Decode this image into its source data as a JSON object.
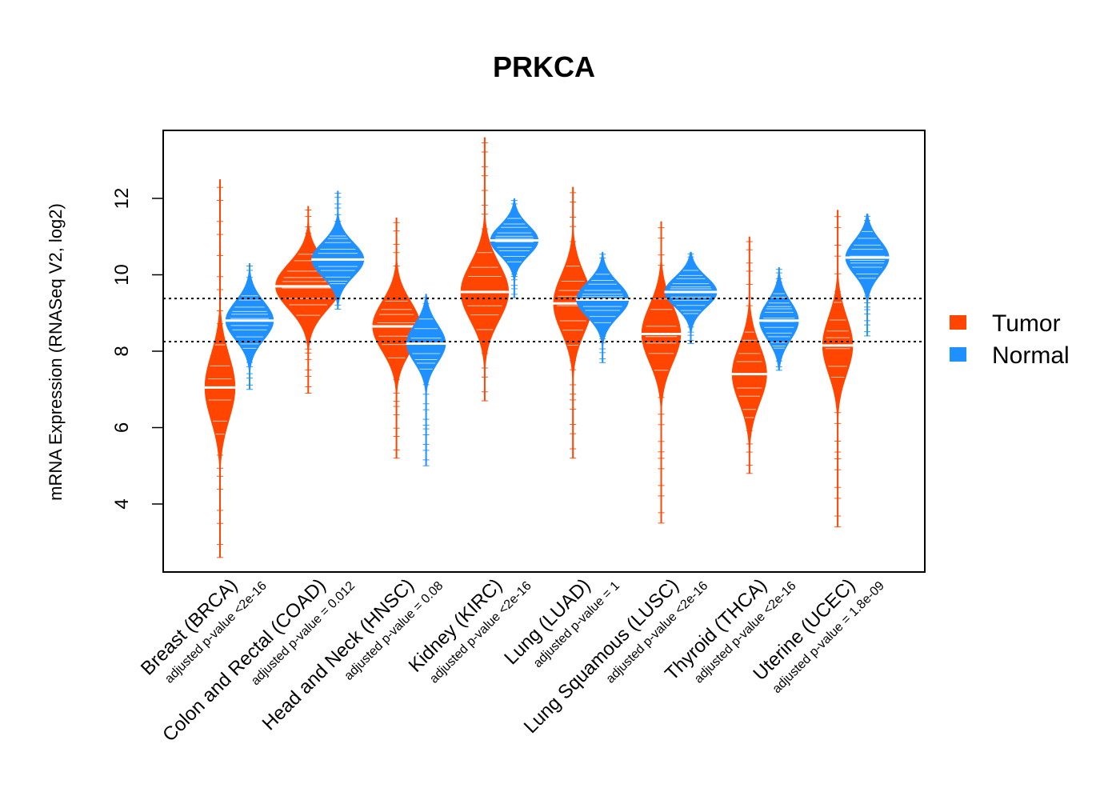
{
  "chart_data": {
    "type": "beanplot",
    "title": "PRKCA",
    "xlabel": "",
    "ylabel": "mRNA Expression (RNASeq V2, log2)",
    "ylim": [
      2.22,
      13.78
    ],
    "yticks": [
      4,
      6,
      8,
      10,
      12
    ],
    "grid": false,
    "reference_lines": [
      9.38,
      8.25
    ],
    "legend": {
      "position": "right",
      "entries": [
        {
          "label": "Tumor",
          "color": "#FF4500"
        },
        {
          "label": "Normal",
          "color": "#1E90FF"
        }
      ]
    },
    "categories": [
      {
        "label": "Breast (BRCA)",
        "pvalue": "adjusted p-value <2e-16",
        "tumor": {
          "min": 2.6,
          "max": 12.5,
          "median": 7.05,
          "sd": 0.85,
          "halfwidth": 0.35
        },
        "normal": {
          "min": 7.0,
          "max": 10.3,
          "median": 8.8,
          "sd": 0.5,
          "halfwidth": 0.55
        }
      },
      {
        "label": "Colon and Rectal (COAD)",
        "pvalue": "adjusted p-value = 0.012",
        "tumor": {
          "min": 6.9,
          "max": 11.8,
          "median": 9.7,
          "sd": 0.6,
          "halfwidth": 0.75
        },
        "normal": {
          "min": 9.1,
          "max": 12.2,
          "median": 10.4,
          "sd": 0.45,
          "halfwidth": 0.6
        }
      },
      {
        "label": "Head and Neck (HNSC)",
        "pvalue": "adjusted p-value = 0.08",
        "tumor": {
          "min": 5.2,
          "max": 11.5,
          "median": 8.65,
          "sd": 0.65,
          "halfwidth": 0.55
        },
        "normal": {
          "min": 5.0,
          "max": 9.5,
          "median": 8.2,
          "sd": 0.5,
          "halfwidth": 0.45
        }
      },
      {
        "label": "Kidney (KIRC)",
        "pvalue": "adjusted p-value <2e-16",
        "tumor": {
          "min": 6.7,
          "max": 13.6,
          "median": 9.55,
          "sd": 0.75,
          "halfwidth": 0.55
        },
        "normal": {
          "min": 9.4,
          "max": 12.0,
          "median": 10.9,
          "sd": 0.4,
          "halfwidth": 0.55
        }
      },
      {
        "label": "Lung (LUAD)",
        "pvalue": "adjusted p-value = 1",
        "tumor": {
          "min": 5.2,
          "max": 12.3,
          "median": 9.25,
          "sd": 0.75,
          "halfwidth": 0.45
        },
        "normal": {
          "min": 7.7,
          "max": 10.6,
          "median": 9.35,
          "sd": 0.45,
          "halfwidth": 0.6
        }
      },
      {
        "label": "Lung Squamous (LUSC)",
        "pvalue": "adjusted p-value <2e-16",
        "tumor": {
          "min": 3.5,
          "max": 11.4,
          "median": 8.45,
          "sd": 0.75,
          "halfwidth": 0.45
        },
        "normal": {
          "min": 8.2,
          "max": 10.6,
          "median": 9.55,
          "sd": 0.4,
          "halfwidth": 0.6
        }
      },
      {
        "label": "Thyroid (THCA)",
        "pvalue": "adjusted p-value <2e-16",
        "tumor": {
          "min": 4.8,
          "max": 11.0,
          "median": 7.4,
          "sd": 0.75,
          "halfwidth": 0.4
        },
        "normal": {
          "min": 7.5,
          "max": 10.2,
          "median": 8.8,
          "sd": 0.5,
          "halfwidth": 0.45
        }
      },
      {
        "label": "Uterine (UCEC)",
        "pvalue": "adjusted p-value = 1.8e-09",
        "tumor": {
          "min": 3.4,
          "max": 11.7,
          "median": 8.15,
          "sd": 0.75,
          "halfwidth": 0.35
        },
        "normal": {
          "min": 8.4,
          "max": 11.6,
          "median": 10.45,
          "sd": 0.45,
          "halfwidth": 0.5
        }
      }
    ]
  }
}
